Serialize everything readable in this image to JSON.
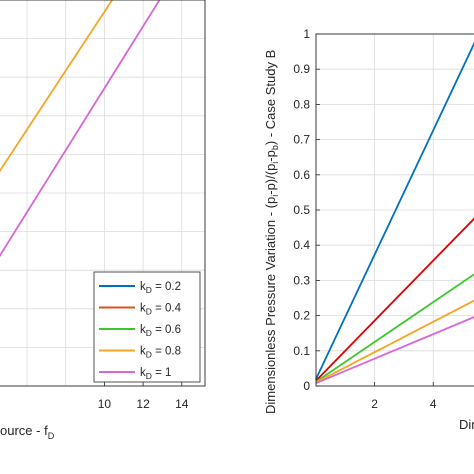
{
  "chart_data": [
    {
      "type": "line",
      "panel": "left",
      "xlabel": "ource - f",
      "xlabel_sub": "D",
      "ylabel": "",
      "xlim": [
        4.5,
        15.2
      ],
      "ylim": [
        0,
        1
      ],
      "xticks": [
        10,
        12,
        14
      ],
      "xtick_labels": [
        "10",
        "12",
        "14"
      ],
      "grid": true,
      "legend": {
        "position": "bottom-right",
        "labels": [
          {
            "prefix": "k",
            "sub": "D",
            "suffix": " = 0.2"
          },
          {
            "prefix": "k",
            "sub": "D",
            "suffix": " = 0.4"
          },
          {
            "prefix": "k",
            "sub": "D",
            "suffix": " = 0.6"
          },
          {
            "prefix": "k",
            "sub": "D",
            "suffix": " = 0.8"
          },
          {
            "prefix": "k",
            "sub": "D",
            "suffix": " = 1"
          }
        ]
      },
      "series": [
        {
          "color": "#0072BD",
          "x": [],
          "y": []
        },
        {
          "color": "#D95319",
          "x": [],
          "y": []
        },
        {
          "color": "#3CC82D",
          "x": [],
          "y": []
        },
        {
          "color": "#F5A623",
          "x": [],
          "y": []
        },
        {
          "color": "#D966D6",
          "x": [],
          "y": []
        }
      ],
      "visible_series": [
        {
          "color": "#F5A623",
          "x": [
            4.5,
            10.4
          ],
          "y": [
            0.55,
            1.0
          ]
        },
        {
          "color": "#D966D6",
          "x": [
            4.5,
            12.85
          ],
          "y": [
            0.33,
            1.0
          ]
        }
      ]
    },
    {
      "type": "line",
      "panel": "right",
      "xlabel": "Dim",
      "ylabel_parts": [
        "Dimensionless Pressure Variation - (p",
        "i",
        "-p)/(p",
        "i",
        "-p",
        "b",
        ") - Case Study B"
      ],
      "xlim": [
        0,
        5.8
      ],
      "ylim": [
        0,
        1
      ],
      "yticks": [
        0,
        0.1,
        0.2,
        0.3,
        0.4,
        0.5,
        0.6,
        0.7,
        0.8,
        0.9,
        1
      ],
      "ytick_labels": [
        "0",
        "0.1",
        "0.2",
        "0.3",
        "0.4",
        "0.5",
        "0.6",
        "0.7",
        "0.8",
        "0.9",
        "1"
      ],
      "xticks": [
        2,
        4
      ],
      "xtick_labels": [
        "2",
        "4"
      ],
      "grid": true,
      "series": [
        {
          "name": "k_D = 0.2",
          "color": "#0072BD",
          "x": [
            0,
            5.55
          ],
          "y": [
            0.02,
            1.0
          ]
        },
        {
          "name": "k_D = 0.4",
          "color": "#E00000",
          "x": [
            0,
            5.8
          ],
          "y": [
            0.015,
            0.51
          ]
        },
        {
          "name": "k_D = 0.6",
          "color": "#3CC82D",
          "x": [
            0,
            5.8
          ],
          "y": [
            0.012,
            0.34
          ]
        },
        {
          "name": "k_D = 0.8",
          "color": "#F5A623",
          "x": [
            0,
            5.8
          ],
          "y": [
            0.01,
            0.26
          ]
        },
        {
          "name": "k_D = 1",
          "color": "#D966D6",
          "x": [
            0,
            5.8
          ],
          "y": [
            0.008,
            0.21
          ]
        }
      ]
    }
  ]
}
